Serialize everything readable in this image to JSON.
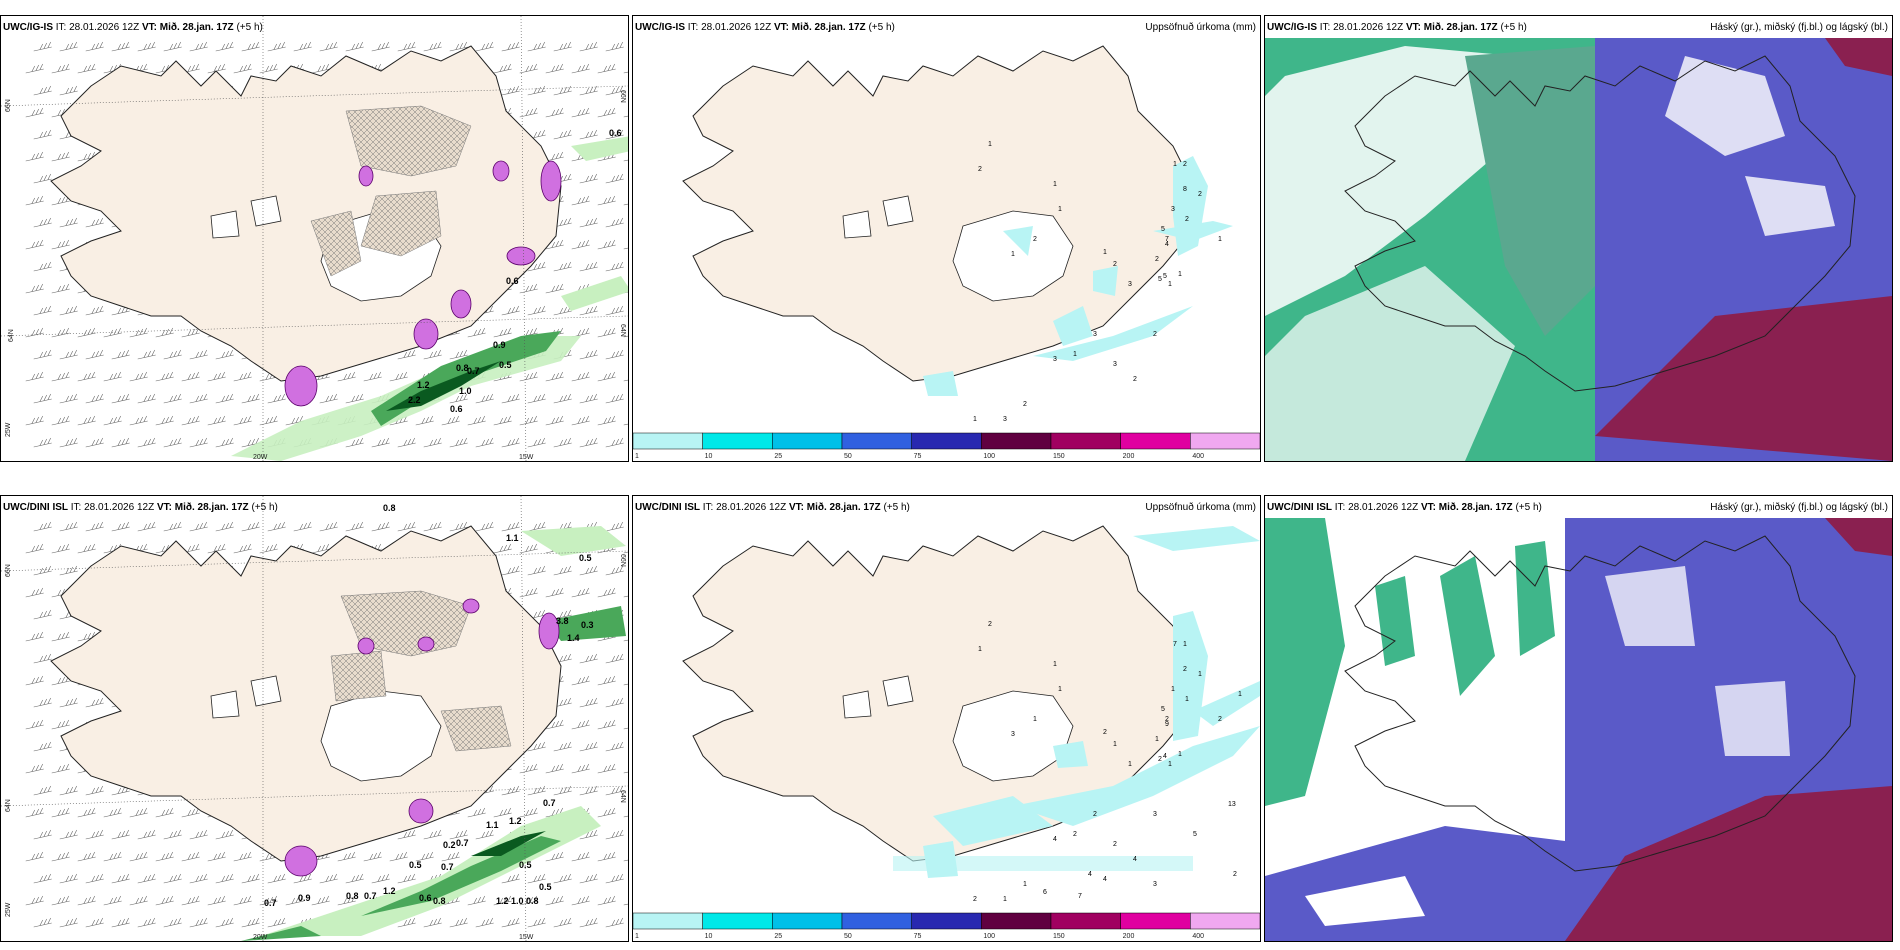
{
  "row1": {
    "p1": {
      "model": "UWC/IG-IS",
      "it": "IT: 28.01.2026 12Z",
      "vt_label": "VT:",
      "vt": "Mið. 28.jan. 17Z",
      "lead": "(+5 h)"
    },
    "p2": {
      "model": "UWC/IG-IS",
      "it": "IT: 28.01.2026 12Z",
      "vt_label": "VT:",
      "vt": "Mið. 28.jan. 17Z",
      "lead": "(+5 h)",
      "right": "Uppsöfnuð úrkoma (mm)"
    },
    "p3": {
      "model": "UWC/IG-IS",
      "it": "IT: 28.01.2026 12Z",
      "vt_label": "VT:",
      "vt": "Mið. 28.jan. 17Z",
      "lead": "(+5 h)",
      "right": "Háský (gr.), miðský (fj.bl.) og lágský (bl.)"
    }
  },
  "row2": {
    "p1": {
      "model": "UWC/DINI ISL",
      "it": "IT: 28.01.2026 12Z",
      "vt_label": "VT:",
      "vt": "Mið. 28.jan. 17Z",
      "lead": "(+5 h)"
    },
    "p2": {
      "model": "UWC/DINI ISL",
      "it": "IT: 28.01.2026 12Z",
      "vt_label": "VT:",
      "vt": "Mið. 28.jan. 17Z",
      "lead": "(+5 h)",
      "right": "Uppsöfnuð úrkoma (mm)"
    },
    "p3": {
      "model": "UWC/DINI ISL",
      "it": "IT: 28.01.2026 12Z",
      "vt_label": "VT:",
      "vt": "Mið. 28.jan. 17Z",
      "lead": "(+5 h)",
      "right": "Háský (gr.), miðský (fj.bl.) og lágský (bl.)"
    }
  },
  "axes": {
    "lat_66": "66N",
    "lat_64": "64N",
    "lat_25w": "25W",
    "lon_20w": "20W",
    "lon_15w": "15W",
    "r_66": "66N",
    "r_64": "64N"
  },
  "colorbar": {
    "ticks": [
      "1",
      "10",
      "25",
      "50",
      "75",
      "100",
      "150",
      "200",
      "400"
    ],
    "colors": [
      "#b8f4f4",
      "#00e8e8",
      "#00c0e8",
      "#3060e0",
      "#2828b0",
      "#600040",
      "#a00060",
      "#e000a0",
      "#f0a8f0"
    ]
  },
  "labels": {
    "wind_top": [
      "0.6",
      "0.9",
      "0.5",
      "0.8",
      "0.7",
      "1.0",
      "0.6",
      "2.2",
      "1.2",
      "0.6"
    ],
    "wind_bot": [
      "0.8",
      "0.5",
      "1.1",
      "0.7",
      "1.1",
      "1.2",
      "0.2",
      "0.7",
      "0.5",
      "0.7",
      "0.5",
      "0.7",
      "0.9",
      "0.8",
      "0.7",
      "1.2",
      "0.6",
      "0.8",
      "1.2",
      "1.0",
      "0.8",
      "0.5",
      "3.8",
      "1.4",
      "0.3"
    ],
    "precip_top": [
      "1",
      "2",
      "1",
      "1",
      "2",
      "1",
      "1",
      "2",
      "3",
      "2",
      "1",
      "8",
      "5",
      "7",
      "3",
      "2",
      "4",
      "5",
      "5",
      "1",
      "2",
      "1",
      "2",
      "1",
      "3",
      "3",
      "1",
      "2",
      "1",
      "3",
      "2",
      "3",
      "2"
    ],
    "precip_bot": [
      "2",
      "1",
      "1",
      "1",
      "1",
      "3",
      "2",
      "1",
      "1",
      "1",
      "1",
      "2",
      "5",
      "2",
      "1",
      "1",
      "9",
      "2",
      "4",
      "2",
      "1",
      "7",
      "1",
      "1",
      "2",
      "4",
      "2",
      "1",
      "2",
      "1",
      "3",
      "2",
      "4",
      "4",
      "6",
      "7",
      "4",
      "3",
      "5",
      "13",
      "2",
      "1"
    ]
  }
}
